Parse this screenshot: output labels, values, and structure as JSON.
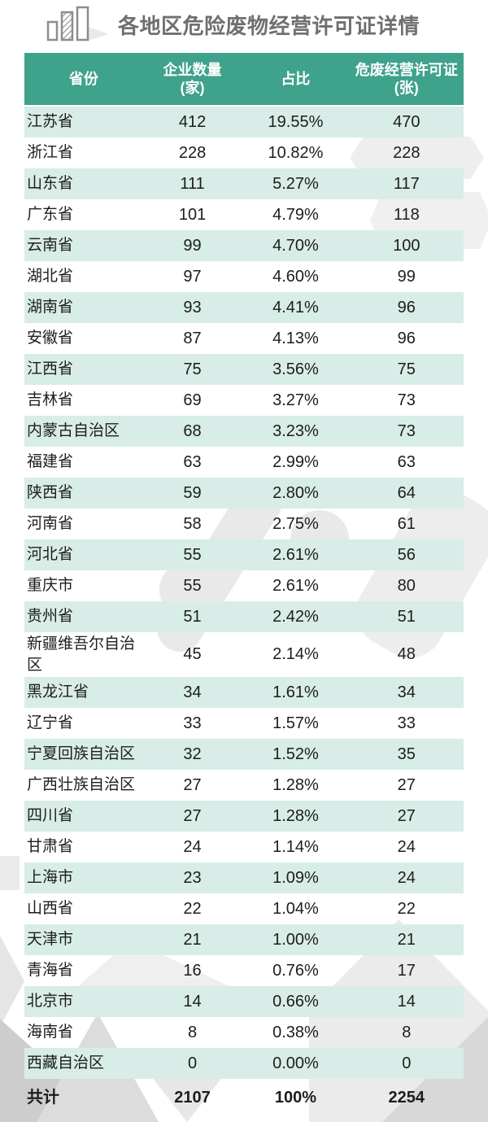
{
  "page": {
    "title": "各地区危险废物经营许可证详情",
    "icon": "bar-chart-icon"
  },
  "colors": {
    "header_bg": "#3FA28B",
    "stripe_bg": "#D8EDE7",
    "title_text": "#6F6F6F",
    "header_text": "#FFFFFF",
    "body_text": "#1D1D1D"
  },
  "chart_data": {
    "type": "table",
    "title": "各地区危险废物经营许可证详情",
    "columns": [
      "省份",
      "企业数量\n(家)",
      "占比",
      "危废经营许可证\n(张)"
    ],
    "rows": [
      [
        "江苏省",
        "412",
        "19.55%",
        "470"
      ],
      [
        "浙江省",
        "228",
        "10.82%",
        "228"
      ],
      [
        "山东省",
        "111",
        "5.27%",
        "117"
      ],
      [
        "广东省",
        "101",
        "4.79%",
        "118"
      ],
      [
        "云南省",
        "99",
        "4.70%",
        "100"
      ],
      [
        "湖北省",
        "97",
        "4.60%",
        "99"
      ],
      [
        "湖南省",
        "93",
        "4.41%",
        "96"
      ],
      [
        "安徽省",
        "87",
        "4.13%",
        "96"
      ],
      [
        "江西省",
        "75",
        "3.56%",
        "75"
      ],
      [
        "吉林省",
        "69",
        "3.27%",
        "73"
      ],
      [
        "内蒙古自治区",
        "68",
        "3.23%",
        "73"
      ],
      [
        "福建省",
        "63",
        "2.99%",
        "63"
      ],
      [
        "陕西省",
        "59",
        "2.80%",
        "64"
      ],
      [
        "河南省",
        "58",
        "2.75%",
        "61"
      ],
      [
        "河北省",
        "55",
        "2.61%",
        "56"
      ],
      [
        "重庆市",
        "55",
        "2.61%",
        "80"
      ],
      [
        "贵州省",
        "51",
        "2.42%",
        "51"
      ],
      [
        "新疆维吾尔自治区",
        "45",
        "2.14%",
        "48"
      ],
      [
        "黑龙江省",
        "34",
        "1.61%",
        "34"
      ],
      [
        "辽宁省",
        "33",
        "1.57%",
        "33"
      ],
      [
        "宁夏回族自治区",
        "32",
        "1.52%",
        "35"
      ],
      [
        "广西壮族自治区",
        "27",
        "1.28%",
        "27"
      ],
      [
        "四川省",
        "27",
        "1.28%",
        "27"
      ],
      [
        "甘肃省",
        "24",
        "1.14%",
        "24"
      ],
      [
        "上海市",
        "23",
        "1.09%",
        "24"
      ],
      [
        "山西省",
        "22",
        "1.04%",
        "22"
      ],
      [
        "天津市",
        "21",
        "1.00%",
        "21"
      ],
      [
        "青海省",
        "16",
        "0.76%",
        "17"
      ],
      [
        "北京市",
        "14",
        "0.66%",
        "14"
      ],
      [
        "海南省",
        "8",
        "0.38%",
        "8"
      ],
      [
        "西藏自治区",
        "0",
        "0.00%",
        "0"
      ]
    ],
    "total": [
      "共计",
      "2107",
      "100%",
      "2254"
    ]
  }
}
